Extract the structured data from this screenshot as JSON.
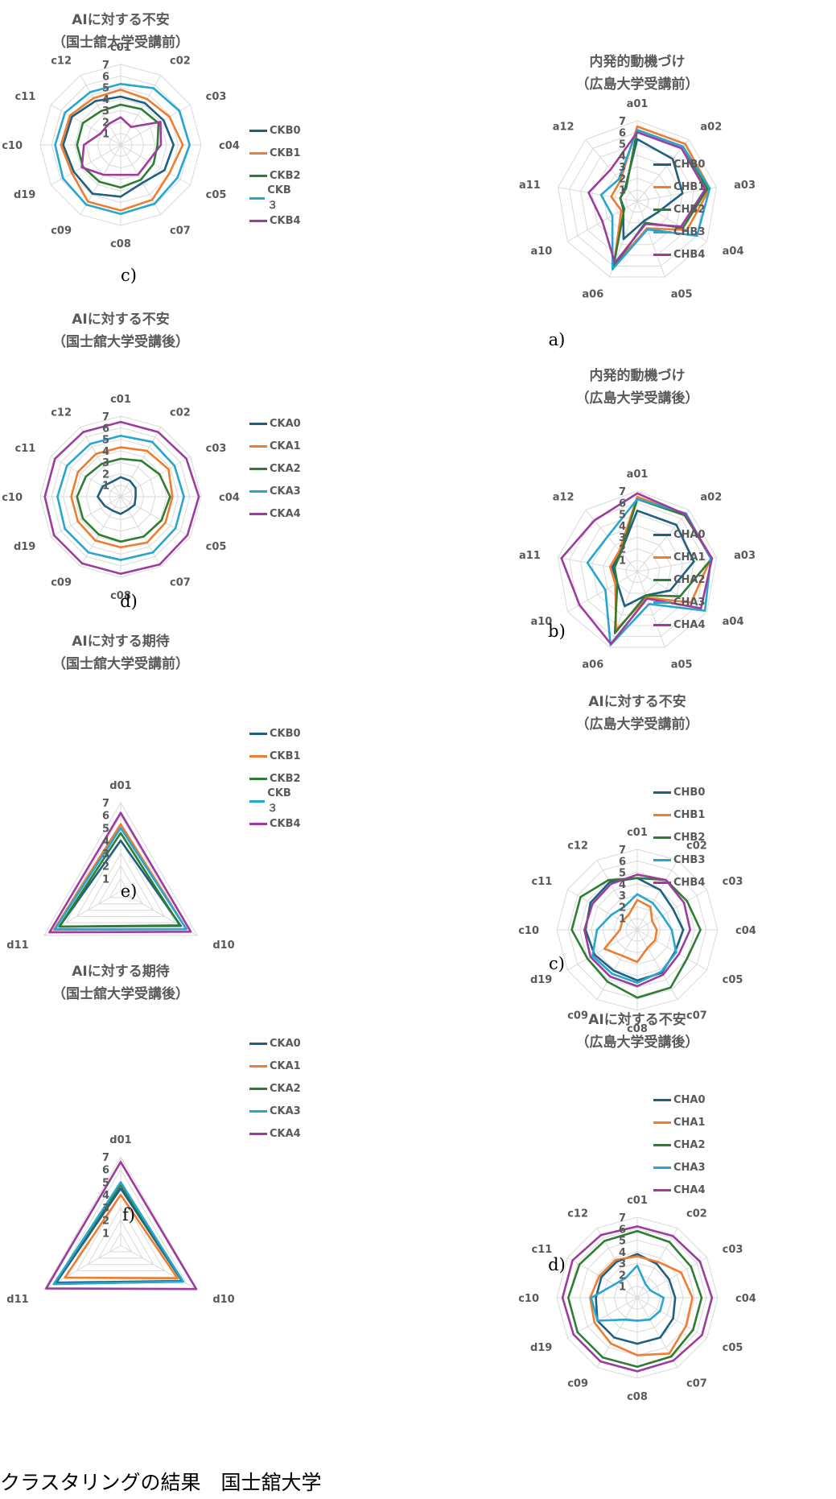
{
  "caption": "クラスタリングの結果　国士舘大学",
  "palette": [
    "#1f5f7f",
    "#ed7d31",
    "#2e7d32",
    "#26a6d1",
    "#9e3b9e"
  ],
  "chart_data": [
    {
      "type": "radar",
      "id": "kc_pre",
      "title": [
        "AIに対する不安",
        "（国士舘大学受講前）"
      ],
      "panel_label": "c)",
      "axes": [
        "c01",
        "c02",
        "c03",
        "c04",
        "c05",
        "c07",
        "c08",
        "c09",
        "d19",
        "c10",
        "c11",
        "c12"
      ],
      "rmax": 7,
      "ticks": [
        "1",
        "2",
        "3",
        "4",
        "5",
        "6",
        "7"
      ],
      "series": [
        {
          "name": "CKB0",
          "values": [
            4.2,
            4.2,
            4.3,
            4.6,
            4.4,
            3.8,
            4.5,
            4.9,
            4.7,
            5.0,
            4.9,
            4.4
          ]
        },
        {
          "name": "CKB1",
          "values": [
            4.8,
            4.6,
            4.9,
            5.4,
            4.9,
            5.5,
            5.7,
            5.7,
            4.9,
            5.2,
            5.1,
            4.7
          ]
        },
        {
          "name": "CKB2",
          "values": [
            3.5,
            3.6,
            3.8,
            3.2,
            3.3,
            3.5,
            3.7,
            3.7,
            3.8,
            3.8,
            3.8,
            3.4
          ]
        },
        {
          "name": "CKB ３",
          "values": [
            5.3,
            5.7,
            5.9,
            6.0,
            5.7,
            5.9,
            6.0,
            6.0,
            5.8,
            5.7,
            5.6,
            5.3
          ]
        },
        {
          "name": "CKB4",
          "values": [
            2.4,
            1.8,
            4.0,
            3.5,
            2.8,
            3.0,
            2.6,
            3.0,
            3.9,
            3.2,
            2.0,
            2.1
          ]
        }
      ]
    },
    {
      "type": "radar",
      "id": "hm_pre",
      "title": [
        "内発的動機づけ",
        "（広島大学受講前）"
      ],
      "panel_label": "a)",
      "axes": [
        "a01",
        "a02",
        "a03",
        "a04",
        "a05",
        "a06",
        "a10",
        "a11",
        "a12"
      ],
      "rmax": 7,
      "ticks": [
        "1",
        "2",
        "3",
        "4",
        "5",
        "6",
        "7"
      ],
      "series": [
        {
          "name": "CHB0",
          "values": [
            5.4,
            4.8,
            4.0,
            2.0,
            1.8,
            3.5,
            1.4,
            1.5,
            1.6
          ]
        },
        {
          "name": "CHB1",
          "values": [
            6.5,
            6.5,
            6.4,
            5.0,
            2.5,
            6.0,
            1.6,
            2.3,
            2.3
          ]
        },
        {
          "name": "CHB2",
          "values": [
            6.2,
            6.2,
            6.2,
            4.6,
            2.0,
            6.1,
            1.3,
            1.5,
            1.5
          ]
        },
        {
          "name": "CHB3",
          "values": [
            6.2,
            6.2,
            6.4,
            6.0,
            2.6,
            6.3,
            2.5,
            3.2,
            2.5
          ]
        },
        {
          "name": "CHB4",
          "values": [
            6.0,
            6.0,
            6.0,
            4.4,
            2.1,
            5.7,
            3.5,
            4.3,
            3.6
          ]
        }
      ]
    },
    {
      "type": "radar",
      "id": "kc_post",
      "title": [
        "AIに対する不安",
        "（国士舘大学受講後）"
      ],
      "panel_label": "d)",
      "axes": [
        "c01",
        "c02",
        "c03",
        "c04",
        "c05",
        "c07",
        "c08",
        "c09",
        "d19",
        "c10",
        "c11",
        "c12"
      ],
      "rmax": 7,
      "ticks": [
        "1",
        "2",
        "3",
        "4",
        "5",
        "6",
        "7"
      ],
      "series": [
        {
          "name": "CKA0",
          "values": [
            1.7,
            1.6,
            1.5,
            1.3,
            1.4,
            1.3,
            1.5,
            1.4,
            1.6,
            2.0,
            1.8,
            1.5
          ]
        },
        {
          "name": "CKA1",
          "values": [
            4.3,
            4.6,
            4.8,
            4.5,
            4.5,
            4.6,
            4.4,
            4.4,
            4.3,
            4.3,
            4.3,
            4.3
          ]
        },
        {
          "name": "CKA2",
          "values": [
            3.3,
            3.6,
            3.9,
            4.3,
            4.1,
            4.0,
            3.9,
            3.8,
            3.8,
            3.8,
            3.5,
            3.3
          ]
        },
        {
          "name": "CKA3",
          "values": [
            5.3,
            5.5,
            5.4,
            5.5,
            5.5,
            5.6,
            5.5,
            5.6,
            5.6,
            5.5,
            5.4,
            5.3
          ]
        },
        {
          "name": "CKA4",
          "values": [
            6.5,
            6.5,
            6.6,
            6.8,
            6.7,
            6.8,
            6.7,
            6.7,
            6.7,
            6.6,
            6.6,
            6.5
          ]
        }
      ]
    },
    {
      "type": "radar",
      "id": "hm_post",
      "title": [
        "内発的動機づけ",
        "（広島大学受講後）"
      ],
      "panel_label": "b)",
      "axes": [
        "a01",
        "a02",
        "a03",
        "a04",
        "a05",
        "a06",
        "a10",
        "a11",
        "a12"
      ],
      "rmax": 7,
      "ticks": [
        "1",
        "2",
        "3",
        "4",
        "5",
        "6",
        "7"
      ],
      "series": [
        {
          "name": "CHA0",
          "values": [
            5.3,
            5.3,
            5.0,
            3.3,
            2.2,
            3.2,
            2.0,
            2.2,
            2.2
          ]
        },
        {
          "name": "CHA1",
          "values": [
            6.5,
            6.5,
            6.5,
            5.4,
            2.4,
            5.4,
            2.2,
            2.4,
            2.4
          ]
        },
        {
          "name": "CHA2",
          "values": [
            6.3,
            6.4,
            6.6,
            4.3,
            2.2,
            5.7,
            2.0,
            2.0,
            2.2
          ]
        },
        {
          "name": "CHA3",
          "values": [
            6.3,
            6.6,
            6.5,
            6.8,
            3.0,
            6.8,
            3.2,
            4.4,
            4.0
          ]
        },
        {
          "name": "CHA4",
          "values": [
            6.8,
            6.5,
            6.6,
            6.4,
            2.5,
            6.7,
            5.8,
            6.7,
            5.8
          ]
        }
      ]
    },
    {
      "type": "radar",
      "id": "ke_pre",
      "title": [
        "AIに対する期待",
        "（国士舘大学受講前）"
      ],
      "panel_label": "e)",
      "axes": [
        "d01",
        "d10",
        "d11"
      ],
      "rmax": 7,
      "ticks": [
        "1",
        "2",
        "3",
        "4",
        "5",
        "6",
        "7"
      ],
      "series": [
        {
          "name": "CKB0",
          "values": [
            4.0,
            5.5,
            5.6
          ]
        },
        {
          "name": "CKB1",
          "values": [
            5.3,
            6.0,
            6.1
          ]
        },
        {
          "name": "CKB2",
          "values": [
            4.6,
            5.4,
            5.6
          ]
        },
        {
          "name": "CKB ３",
          "values": [
            5.0,
            6.0,
            6.0
          ]
        },
        {
          "name": "CKB4",
          "values": [
            6.2,
            6.4,
            6.5
          ]
        }
      ]
    },
    {
      "type": "radar",
      "id": "ha_pre",
      "title": [
        "AIに対する不安",
        "（広島大学受講前）"
      ],
      "panel_label": "c)",
      "axes": [
        "c01",
        "c02",
        "c03",
        "c04",
        "c05",
        "c07",
        "c08",
        "c09",
        "d19",
        "c10",
        "c11",
        "c12"
      ],
      "rmax": 7,
      "ticks": [
        "1",
        "2",
        "3",
        "4",
        "5",
        "6",
        "7"
      ],
      "series": [
        {
          "name": "CHB0",
          "values": [
            4.5,
            4.0,
            3.6,
            4.0,
            3.8,
            4.3,
            4.4,
            4.1,
            4.3,
            4.5,
            4.7,
            4.8
          ]
        },
        {
          "name": "CHB1",
          "values": [
            2.6,
            2.3,
            1.5,
            1.7,
            1.8,
            1.8,
            2.8,
            2.6,
            3.3,
            1.5,
            1.5,
            1.5
          ]
        },
        {
          "name": "CHB2",
          "values": [
            4.5,
            5.0,
            5.0,
            5.5,
            5.0,
            5.8,
            5.9,
            5.2,
            5.0,
            5.7,
            5.7,
            5.0
          ]
        },
        {
          "name": "CHB3",
          "values": [
            3.1,
            2.7,
            2.5,
            3.0,
            3.9,
            4.2,
            4.6,
            4.4,
            4.5,
            3.5,
            2.6,
            2.3
          ]
        },
        {
          "name": "CHB4",
          "values": [
            4.8,
            5.0,
            4.7,
            4.6,
            4.2,
            4.5,
            4.9,
            4.7,
            4.7,
            4.6,
            4.5,
            4.6
          ]
        }
      ]
    },
    {
      "type": "radar",
      "id": "ke_post",
      "title": [
        "AIに対する期待",
        "（国士舘大学受講後）"
      ],
      "panel_label": "f)",
      "axes": [
        "d01",
        "d10",
        "d11"
      ],
      "rmax": 7,
      "ticks": [
        "1",
        "2",
        "3",
        "4",
        "5",
        "6",
        "7"
      ],
      "series": [
        {
          "name": "CKA0",
          "values": [
            4.5,
            5.6,
            5.9
          ]
        },
        {
          "name": "CKA1",
          "values": [
            4.0,
            5.2,
            5.1
          ]
        },
        {
          "name": "CKA2",
          "values": [
            4.8,
            5.7,
            6.1
          ]
        },
        {
          "name": "CKA3",
          "values": [
            5.0,
            5.7,
            6.1
          ]
        },
        {
          "name": "CKA4",
          "values": [
            6.6,
            6.9,
            6.8
          ]
        }
      ]
    },
    {
      "type": "radar",
      "id": "ha_post",
      "title": [
        "AIに対する不安",
        "（広島大学受講後）"
      ],
      "panel_label": "d)",
      "axes": [
        "c01",
        "c02",
        "c03",
        "c04",
        "c05",
        "c07",
        "c08",
        "c09",
        "d19",
        "c10",
        "c11",
        "c12"
      ],
      "rmax": 7,
      "ticks": [
        "1",
        "2",
        "3",
        "4",
        "5",
        "6",
        "7"
      ],
      "series": [
        {
          "name": "CHA0",
          "values": [
            3.8,
            3.4,
            3.2,
            3.3,
            3.6,
            4.0,
            4.0,
            4.0,
            4.0,
            3.6,
            3.6,
            3.6
          ]
        },
        {
          "name": "CHA1",
          "values": [
            3.6,
            3.6,
            4.4,
            4.8,
            4.9,
            5.6,
            5.0,
            4.6,
            4.3,
            4.1,
            3.8,
            3.8
          ]
        },
        {
          "name": "CHA2",
          "values": [
            5.8,
            5.6,
            5.4,
            5.6,
            5.6,
            5.9,
            6.0,
            6.0,
            6.0,
            6.0,
            5.8,
            5.7
          ]
        },
        {
          "name": "CHA3",
          "values": [
            2.8,
            1.4,
            1.3,
            2.3,
            2.3,
            2.2,
            2.0,
            2.2,
            4.0,
            4.0,
            2.3,
            2.0
          ]
        },
        {
          "name": "CHA4",
          "values": [
            6.2,
            6.2,
            6.3,
            6.5,
            6.5,
            6.3,
            6.4,
            6.4,
            6.4,
            6.5,
            6.5,
            6.3
          ]
        }
      ]
    }
  ]
}
